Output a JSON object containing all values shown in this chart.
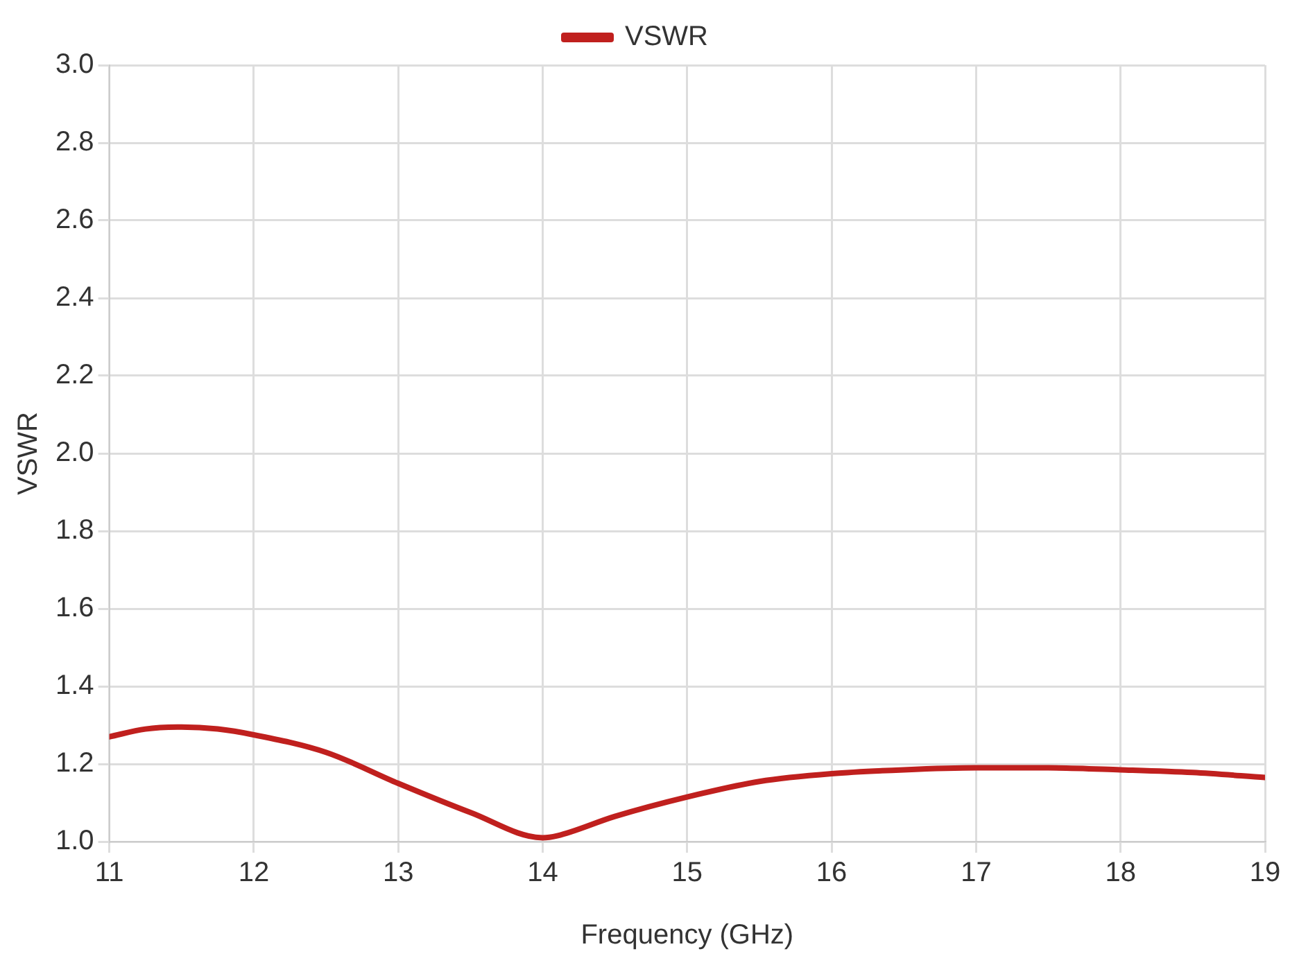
{
  "chart_data": {
    "type": "line",
    "xlabel": "Frequency (GHz)",
    "ylabel": "VSWR",
    "x": [
      11,
      11.25,
      11.5,
      11.75,
      12,
      12.5,
      13,
      13.5,
      14,
      14.1,
      14.5,
      15,
      15.5,
      16,
      16.5,
      17,
      17.5,
      18,
      18.5,
      19
    ],
    "series": [
      {
        "name": "VSWR",
        "color": "#c0201e",
        "values": [
          1.27,
          1.29,
          1.295,
          1.29,
          1.275,
          1.23,
          1.15,
          1.075,
          1.01,
          1.015,
          1.065,
          1.115,
          1.155,
          1.175,
          1.185,
          1.19,
          1.19,
          1.185,
          1.178,
          1.165
        ]
      }
    ],
    "xlim": [
      11,
      19
    ],
    "xticks": [
      11,
      12,
      13,
      14,
      15,
      16,
      17,
      18,
      19
    ],
    "ylim": [
      1.0,
      3.0
    ],
    "yticks": [
      {
        "value": 1.0,
        "label": "1.0"
      },
      {
        "value": 1.2,
        "label": "1.2"
      },
      {
        "value": 1.4,
        "label": "1.4"
      },
      {
        "value": 1.6,
        "label": "1.6"
      },
      {
        "value": 1.8,
        "label": "1.8"
      },
      {
        "value": 2.0,
        "label": "2.0"
      },
      {
        "value": 2.2,
        "label": "2.2"
      },
      {
        "value": 2.4,
        "label": "2.4"
      },
      {
        "value": 2.6,
        "label": "2.6"
      },
      {
        "value": 2.8,
        "label": "2.8"
      },
      {
        "value": 3.0,
        "label": "3.0"
      }
    ],
    "grid": true,
    "legend": "top",
    "marker": "none",
    "line_style": "solid"
  }
}
